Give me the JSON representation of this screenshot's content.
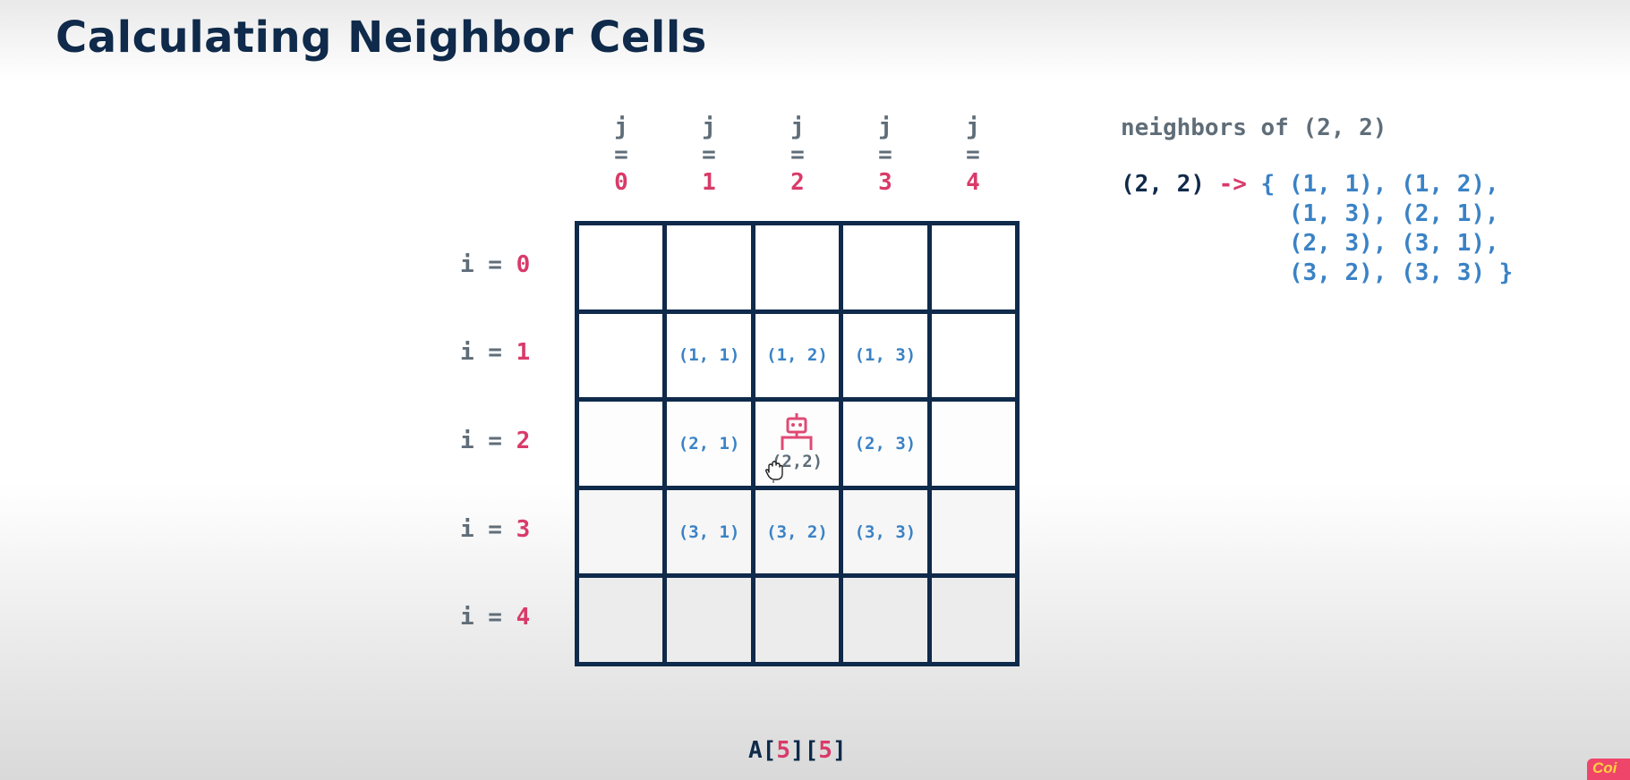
{
  "title": "Calculating Neighbor Cells",
  "columns": [
    {
      "var": "j",
      "eq": "=",
      "index": "0"
    },
    {
      "var": "j",
      "eq": "=",
      "index": "1"
    },
    {
      "var": "j",
      "eq": "=",
      "index": "2"
    },
    {
      "var": "j",
      "eq": "=",
      "index": "3"
    },
    {
      "var": "j",
      "eq": "=",
      "index": "4"
    }
  ],
  "rows": [
    {
      "prefix": "i = ",
      "index": "0"
    },
    {
      "prefix": "i = ",
      "index": "1"
    },
    {
      "prefix": "i = ",
      "index": "2"
    },
    {
      "prefix": "i = ",
      "index": "3"
    },
    {
      "prefix": "i = ",
      "index": "4"
    }
  ],
  "grid": [
    [
      "",
      "",
      "",
      "",
      ""
    ],
    [
      "",
      "(1, 1)",
      "(1, 2)",
      "(1, 3)",
      ""
    ],
    [
      "",
      "(2, 1)",
      "(2,2)",
      "(2, 3)",
      ""
    ],
    [
      "",
      "(3, 1)",
      "(3, 2)",
      "(3, 3)",
      ""
    ],
    [
      "",
      "",
      "",
      "",
      ""
    ]
  ],
  "neighbors_title": "neighbors of (2, 2)",
  "expression": {
    "key": "(2, 2)",
    "arrow": "->",
    "set_lines": [
      "{ (1, 1), (1, 2),",
      "  (1, 3), (2, 1),",
      "  (2, 3), (3, 1),",
      "  (3, 2), (3, 3) }"
    ]
  },
  "array": {
    "name": "A",
    "dim1": "5",
    "dim2": "5"
  },
  "colors": {
    "navy": "#0f2a4a",
    "pink": "#d93a69",
    "blue": "#3a82c6",
    "gray": "#5f6d78"
  },
  "icons": {
    "center_cell": "robot-icon",
    "pointer": "hand-cursor-icon"
  },
  "logo_text": "Coi"
}
